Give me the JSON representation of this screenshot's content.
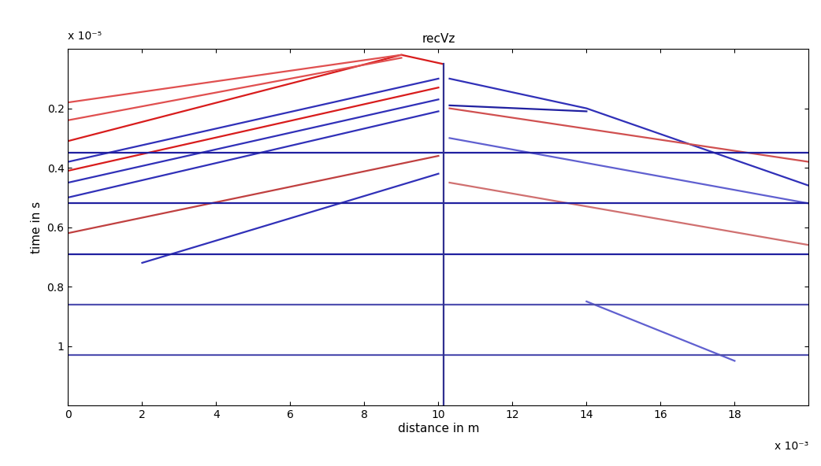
{
  "chart_data": {
    "type": "line",
    "title": "recVz",
    "x_label": "distance in m",
    "y_label": "time in s",
    "annotations": [
      {
        "text": "x 10⁻⁵",
        "axis": "y"
      },
      {
        "text": "x 10⁻³",
        "axis": "x"
      }
    ],
    "xlim": [
      0,
      20
    ],
    "ylim": [
      1.2,
      0
    ],
    "xticks": [
      0,
      2,
      4,
      6,
      8,
      10,
      12,
      14,
      16,
      18
    ],
    "yticks": [
      0.2,
      0.4,
      0.6,
      0.8,
      1
    ],
    "grid": false,
    "series": [
      {
        "color": "#d81c1c",
        "x": [
          0,
          9,
          10.1
        ],
        "values": [
          0.31,
          0.02,
          0.05
        ]
      },
      {
        "color": "#e05050",
        "x": [
          0,
          9
        ],
        "values": [
          0.18,
          0.02
        ]
      },
      {
        "color": "#e05050",
        "x": [
          0,
          9
        ],
        "values": [
          0.24,
          0.03
        ]
      },
      {
        "color": "#3030b8",
        "x": [
          0,
          10
        ],
        "values": [
          0.38,
          0.1
        ]
      },
      {
        "color": "#d81c1c",
        "x": [
          0,
          10
        ],
        "values": [
          0.41,
          0.13
        ]
      },
      {
        "color": "#3030b8",
        "x": [
          0,
          10
        ],
        "values": [
          0.45,
          0.17
        ]
      },
      {
        "color": "#3030b8",
        "x": [
          0,
          10
        ],
        "values": [
          0.5,
          0.21
        ]
      },
      {
        "color": "#c04040",
        "x": [
          0,
          10
        ],
        "values": [
          0.62,
          0.36
        ]
      },
      {
        "color": "#3030b8",
        "x": [
          2,
          10
        ],
        "values": [
          0.72,
          0.42
        ]
      },
      {
        "color": "#3030b8",
        "x": [
          10.3,
          14,
          20
        ],
        "values": [
          0.1,
          0.2,
          0.46
        ]
      },
      {
        "color": "#2020a0",
        "x": [
          10.3,
          14
        ],
        "values": [
          0.19,
          0.21
        ]
      },
      {
        "color": "#d05050",
        "x": [
          10.3,
          20
        ],
        "values": [
          0.2,
          0.38
        ]
      },
      {
        "color": "#6060d0",
        "x": [
          10.3,
          20
        ],
        "values": [
          0.3,
          0.52
        ]
      },
      {
        "color": "#d07070",
        "x": [
          10.3,
          20
        ],
        "values": [
          0.45,
          0.66
        ]
      },
      {
        "color": "#6060d0",
        "x": [
          14,
          18
        ],
        "values": [
          0.85,
          1.05
        ]
      },
      {
        "color": "#2020a0",
        "x": [
          0,
          20
        ],
        "values": [
          0.35,
          0.35
        ]
      },
      {
        "color": "#2020a0",
        "x": [
          0,
          20
        ],
        "values": [
          0.52,
          0.52
        ]
      },
      {
        "color": "#2020a0",
        "x": [
          0,
          20
        ],
        "values": [
          0.69,
          0.69
        ]
      },
      {
        "color": "#5050b0",
        "x": [
          0,
          20
        ],
        "values": [
          0.86,
          0.86
        ]
      },
      {
        "color": "#5050b0",
        "x": [
          0,
          20
        ],
        "values": [
          1.03,
          1.03
        ]
      },
      {
        "color": "#303090",
        "x": [
          10.15,
          10.15
        ],
        "values": [
          0.05,
          1.2
        ]
      }
    ]
  }
}
